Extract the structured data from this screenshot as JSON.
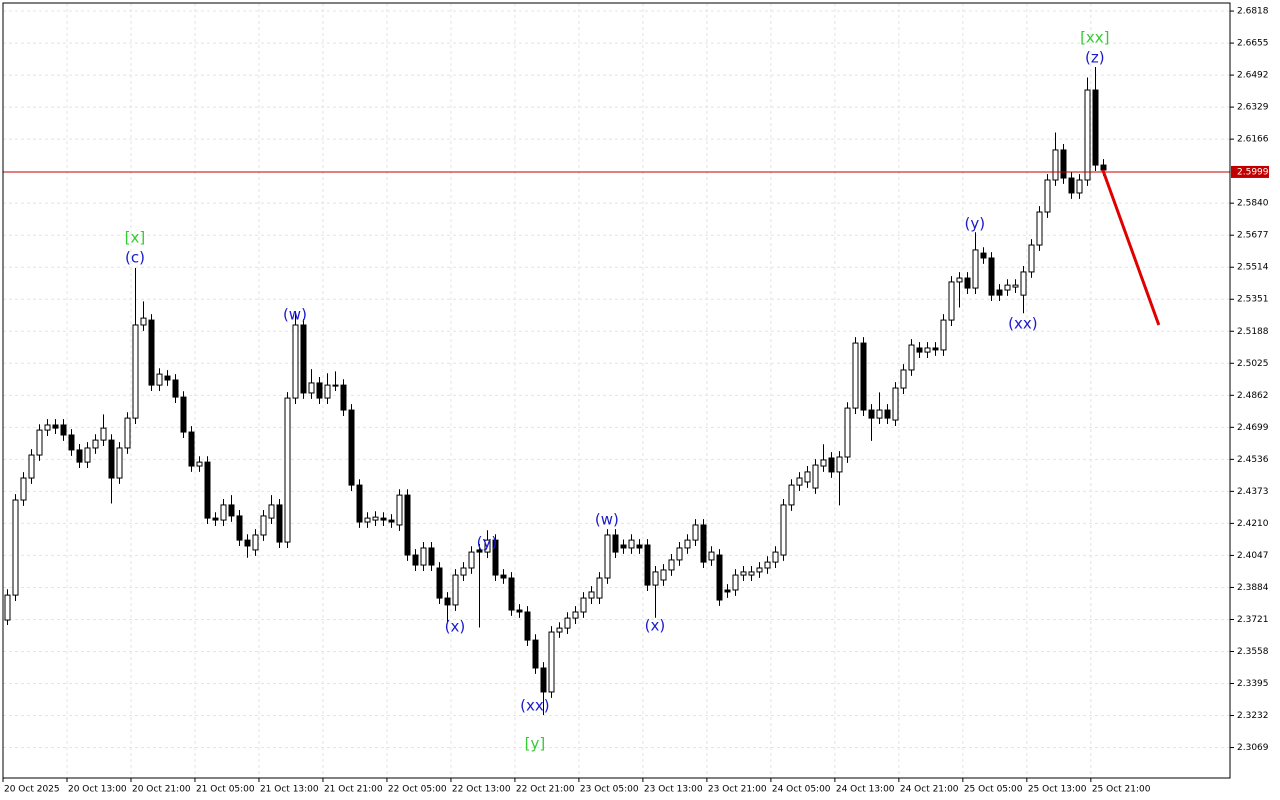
{
  "chart_data": {
    "type": "candlestick",
    "xlim": [
      -0.5,
      152.9
    ],
    "ylim": [
      2.2914,
      2.6859
    ],
    "grid": true,
    "bull_color": "#ffffff",
    "bear_color": "#000000",
    "xticks": [
      {
        "value": 0,
        "label": "20 Oct 2025"
      },
      {
        "value": 8,
        "label": "20 Oct 13:00"
      },
      {
        "value": 16,
        "label": "20 Oct 21:00"
      },
      {
        "value": 24,
        "label": "21 Oct 05:00"
      },
      {
        "value": 32,
        "label": "21 Oct 13:00"
      },
      {
        "value": 40,
        "label": "21 Oct 21:00"
      },
      {
        "value": 48,
        "label": "22 Oct 05:00"
      },
      {
        "value": 56,
        "label": "22 Oct 13:00"
      },
      {
        "value": 64,
        "label": "22 Oct 21:00"
      },
      {
        "value": 72,
        "label": "23 Oct 05:00"
      },
      {
        "value": 80,
        "label": "23 Oct 13:00"
      },
      {
        "value": 88,
        "label": "23 Oct 21:00"
      },
      {
        "value": 96,
        "label": "24 Oct 05:00"
      },
      {
        "value": 104,
        "label": "24 Oct 13:00"
      },
      {
        "value": 112,
        "label": "24 Oct 21:00"
      },
      {
        "value": 120,
        "label": "25 Oct 05:00"
      },
      {
        "value": 128,
        "label": "25 Oct 13:00"
      },
      {
        "value": 136,
        "label": "25 Oct 21:00"
      }
    ],
    "yticks": [
      2.6818,
      2.6655,
      2.6492,
      2.6329,
      2.6166,
      {
        "value": 2.584,
        "label": "2.5840"
      },
      2.5677,
      2.5514,
      2.5351,
      2.5188,
      2.5025,
      2.4862,
      2.4699,
      2.4536,
      2.4373,
      {
        "value": 2.421,
        "label": "2.4210"
      },
      2.4047,
      2.3884,
      2.3721,
      2.3558,
      2.3395,
      2.3232,
      2.3069
    ],
    "open": [
      2.3718,
      2.3845,
      2.4329,
      2.4441,
      2.4558,
      2.4685,
      2.4711,
      2.4711,
      2.466,
      2.4584,
      2.4522,
      2.4594,
      2.4634,
      2.4634,
      2.4441,
      2.4594,
      2.4746,
      2.522,
      2.5245,
      2.4914,
      2.496,
      2.494,
      2.4853,
      2.4675,
      2.4502,
      2.4522,
      2.4237,
      2.4227,
      2.4304,
      2.4248,
      2.4125,
      2.4075,
      2.4151,
      2.4237,
      2.4304,
      2.4115,
      2.4848,
      2.522,
      2.4874,
      2.4925,
      2.4848,
      2.4914,
      2.4914,
      2.4787,
      2.4405,
      2.4217,
      2.4227,
      2.4237,
      2.4227,
      2.4202,
      2.4354,
      2.4049,
      2.3998,
      2.4085,
      2.3983,
      2.383,
      2.3795,
      2.3947,
      2.3983,
      2.4075,
      2.4064,
      2.4125,
      2.3947,
      2.3932,
      2.3769,
      2.3759,
      2.3616,
      2.3474,
      2.3352,
      2.3657,
      2.3677,
      2.3728,
      2.3759,
      2.383,
      2.383,
      2.3932,
      2.4151,
      2.41,
      2.4085,
      2.41,
      2.41,
      2.3896,
      2.3922,
      2.3973,
      2.4024,
      2.4085,
      2.4125,
      2.4202,
      2.4024,
      2.4049,
      2.3871,
      2.3871,
      2.3947,
      2.3947,
      2.3963,
      2.3983,
      2.4013,
      2.4049,
      2.4304,
      2.4405,
      2.4421,
      2.439,
      2.4502,
      2.4543,
      2.4472,
      2.4548,
      2.4797,
      2.5128,
      2.4787,
      2.4746,
      2.4787,
      2.4736,
      2.4899,
      2.4991,
      2.5103,
      2.5082,
      2.5103,
      2.5093,
      2.5245,
      2.5439,
      2.5459,
      2.5408,
      2.5586,
      2.5561,
      2.5398,
      2.5398,
      2.5413,
      2.5372,
      2.549,
      2.5627,
      2.5795,
      2.5958,
      2.6111,
      2.5968,
      2.5892,
      2.5958,
      2.6416,
      2.6034
    ],
    "high": [
      2.3875,
      2.4359,
      2.4471,
      2.4588,
      2.4715,
      2.4741,
      2.4741,
      2.4741,
      2.469,
      2.4614,
      2.4624,
      2.4664,
      2.4765,
      2.4664,
      2.4624,
      2.4776,
      2.551,
      2.534,
      2.5275,
      2.5,
      2.499,
      2.497,
      2.4883,
      2.4705,
      2.4552,
      2.4552,
      2.4267,
      2.4334,
      2.4354,
      2.4278,
      2.4155,
      2.4181,
      2.4278,
      2.4354,
      2.4334,
      2.4878,
      2.529,
      2.525,
      2.4995,
      2.4955,
      2.4974,
      2.4984,
      2.4944,
      2.4817,
      2.4435,
      2.4267,
      2.4272,
      2.4267,
      2.4257,
      2.4384,
      2.4384,
      2.4079,
      2.4115,
      2.4115,
      2.4013,
      2.386,
      2.3977,
      2.4013,
      2.4094,
      2.4105,
      2.4175,
      2.4155,
      2.3977,
      2.3962,
      2.3799,
      2.3789,
      2.3646,
      2.3504,
      2.3687,
      2.3707,
      2.3758,
      2.3789,
      2.386,
      2.3891,
      2.3962,
      2.4181,
      2.4181,
      2.4128,
      2.4155,
      2.413,
      2.413,
      2.3993,
      2.4003,
      2.4054,
      2.4115,
      2.4155,
      2.4232,
      2.4232,
      2.4094,
      2.4079,
      2.3901,
      2.3977,
      2.3993,
      2.3993,
      2.4013,
      2.4043,
      2.4094,
      2.4334,
      2.4435,
      2.4471,
      2.4502,
      2.4537,
      2.4613,
      2.4573,
      2.4578,
      2.4827,
      2.5158,
      2.5158,
      2.4817,
      2.4877,
      2.4817,
      2.4929,
      2.5021,
      2.5148,
      2.5133,
      2.5133,
      2.5133,
      2.5275,
      2.5469,
      2.5489,
      2.5489,
      2.5692,
      2.5616,
      2.5591,
      2.5428,
      2.5453,
      2.5453,
      2.552,
      2.5657,
      2.5825,
      2.5988,
      2.62,
      2.6141,
      2.5998,
      2.5988,
      2.648,
      2.6533,
      2.6064
    ],
    "low": [
      2.3693,
      2.3815,
      2.4299,
      2.4411,
      2.4528,
      2.4655,
      2.4665,
      2.463,
      2.4554,
      2.4492,
      2.4492,
      2.4564,
      2.4604,
      2.4311,
      2.4411,
      2.4564,
      2.4716,
      2.519,
      2.4884,
      2.4884,
      2.491,
      2.4823,
      2.4645,
      2.4472,
      2.4472,
      2.4207,
      2.4197,
      2.4197,
      2.4218,
      2.4095,
      2.4035,
      2.4045,
      2.4121,
      2.4207,
      2.4085,
      2.4085,
      2.4818,
      2.4844,
      2.4844,
      2.4818,
      2.4818,
      2.4884,
      2.4757,
      2.4375,
      2.4187,
      2.4187,
      2.4197,
      2.4197,
      2.4187,
      2.4172,
      2.4019,
      2.3968,
      2.3968,
      2.3968,
      2.38,
      2.3705,
      2.3765,
      2.3917,
      2.3953,
      2.368,
      2.4034,
      2.3917,
      2.3902,
      2.3739,
      2.3729,
      2.3586,
      2.3444,
      2.3235,
      2.3322,
      2.3627,
      2.3647,
      2.3698,
      2.3729,
      2.38,
      2.38,
      2.3902,
      2.4034,
      2.4055,
      2.4055,
      2.4055,
      2.3866,
      2.373,
      2.3892,
      2.3943,
      2.3994,
      2.4055,
      2.4095,
      2.3983,
      2.3994,
      2.379,
      2.3831,
      2.3841,
      2.3917,
      2.3917,
      2.3933,
      2.3953,
      2.3983,
      2.4019,
      2.4274,
      2.4375,
      2.4391,
      2.436,
      2.4472,
      2.4442,
      2.4302,
      2.4518,
      2.4767,
      2.4757,
      2.463,
      2.4716,
      2.4716,
      2.4706,
      2.4869,
      2.4961,
      2.5052,
      2.5052,
      2.5063,
      2.5063,
      2.5215,
      2.5309,
      2.5378,
      2.5378,
      2.5531,
      2.5342,
      2.5342,
      2.5368,
      2.5383,
      2.528,
      2.546,
      2.5597,
      2.5765,
      2.5928,
      2.5938,
      2.5862,
      2.5862,
      2.5928,
      2.6004,
      2.5979
    ],
    "close": [
      2.3845,
      2.4329,
      2.4441,
      2.4558,
      2.4685,
      2.4711,
      2.4695,
      2.466,
      2.4584,
      2.4522,
      2.4594,
      2.4634,
      2.4695,
      2.4441,
      2.4594,
      2.4746,
      2.522,
      2.5255,
      2.4914,
      2.497,
      2.494,
      2.4853,
      2.4675,
      2.4502,
      2.4522,
      2.4237,
      2.4227,
      2.4304,
      2.4248,
      2.4125,
      2.4095,
      2.4151,
      2.4248,
      2.4304,
      2.4115,
      2.4848,
      2.522,
      2.4874,
      2.4925,
      2.4848,
      2.4914,
      2.4914,
      2.4787,
      2.4405,
      2.4217,
      2.4237,
      2.4242,
      2.4227,
      2.4217,
      2.4354,
      2.4049,
      2.3998,
      2.4085,
      2.3998,
      2.383,
      2.3795,
      2.3947,
      2.3983,
      2.4064,
      2.4064,
      2.4125,
      2.3947,
      2.3932,
      2.3769,
      2.3759,
      2.3616,
      2.3474,
      2.3352,
      2.3657,
      2.3677,
      2.3728,
      2.3759,
      2.383,
      2.3861,
      2.3932,
      2.4151,
      2.4064,
      2.4085,
      2.4125,
      2.4085,
      2.3896,
      2.3963,
      2.3973,
      2.4024,
      2.4085,
      2.4125,
      2.4202,
      2.4013,
      2.4064,
      2.382,
      2.3861,
      2.3947,
      2.3963,
      2.3963,
      2.3983,
      2.4013,
      2.4064,
      2.4304,
      2.4405,
      2.4441,
      2.4472,
      2.4507,
      2.4533,
      2.4472,
      2.4548,
      2.4797,
      2.5128,
      2.4787,
      2.4746,
      2.4787,
      2.4746,
      2.4899,
      2.4991,
      2.5118,
      2.5082,
      2.5103,
      2.5093,
      2.5245,
      2.5439,
      2.5459,
      2.5408,
      2.5602,
      2.5561,
      2.5372,
      2.5372,
      2.5423,
      2.5423,
      2.549,
      2.5627,
      2.5795,
      2.5958,
      2.6111,
      2.5968,
      2.5892,
      2.5958,
      2.6416,
      2.6034,
      2.6009
    ],
    "current_price": 2.5999,
    "current_price_color": "#c00000",
    "forecast": {
      "x": [
        137,
        144
      ],
      "values": [
        2.6009,
        2.522
      ],
      "color": "#e00000"
    },
    "annotations": [
      {
        "text": "[x]",
        "index": 16,
        "value": 2.5663,
        "color": "#33cc33"
      },
      {
        "text": "(c)",
        "index": 16,
        "value": 2.5561,
        "color": "#1a1acc"
      },
      {
        "text": "(w)",
        "index": 36,
        "value": 2.5271,
        "color": "#1a1acc"
      },
      {
        "text": "(x)",
        "index": 56,
        "value": 2.3683,
        "color": "#1a1acc"
      },
      {
        "text": "(y)",
        "index": 60,
        "value": 2.411,
        "color": "#1a1acc"
      },
      {
        "text": "(xx)",
        "index": 66,
        "value": 2.3281,
        "color": "#1a1acc"
      },
      {
        "text": "[y]",
        "index": 66,
        "value": 2.3087,
        "color": "#33cc33"
      },
      {
        "text": "(w)",
        "index": 75,
        "value": 2.4227,
        "color": "#1a1acc"
      },
      {
        "text": "(x)",
        "index": 81,
        "value": 2.3688,
        "color": "#1a1acc"
      },
      {
        "text": "(y)",
        "index": 121,
        "value": 2.5734,
        "color": "#1a1acc"
      },
      {
        "text": "(xx)",
        "index": 127,
        "value": 2.5225,
        "color": "#1a1acc"
      },
      {
        "text": "[xx]",
        "index": 136,
        "value": 2.6681,
        "color": "#33cc33"
      },
      {
        "text": "(z)",
        "index": 136,
        "value": 2.6579,
        "color": "#1a1acc"
      }
    ]
  }
}
